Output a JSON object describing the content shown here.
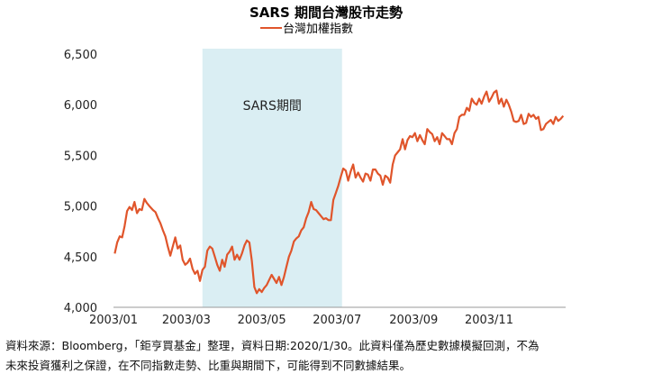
{
  "chart_data": {
    "type": "line",
    "title": "SARS 期間台灣股市走勢",
    "xlabel": "",
    "ylabel": "",
    "ylim": [
      4000,
      6500
    ],
    "yticks": [
      4000,
      4500,
      5000,
      5500,
      6000,
      6500
    ],
    "ytick_labels": [
      "4,000",
      "4,500",
      "5,000",
      "5,500",
      "6,000",
      "6,500"
    ],
    "xlim": [
      "2003-01-01",
      "2004-01-02"
    ],
    "xticks": [
      "2003-01-01",
      "2003-03-01",
      "2003-05-01",
      "2003-07-01",
      "2003-09-01",
      "2003-11-01"
    ],
    "xtick_labels": [
      "2003/01",
      "2003/03",
      "2003/05",
      "2003/07",
      "2003/09",
      "2003/11"
    ],
    "grid": false,
    "legend": "top-center",
    "shaded_region": {
      "start": "2003-03-14",
      "end": "2003-07-05",
      "label": "SARS期間",
      "color": "#daeef3"
    },
    "series": [
      {
        "name": "台灣加權指數",
        "color": "#e0552b",
        "points": [
          [
            "2003-01-02",
            4530
          ],
          [
            "2003-01-04",
            4640
          ],
          [
            "2003-01-06",
            4700
          ],
          [
            "2003-01-08",
            4690
          ],
          [
            "2003-01-10",
            4800
          ],
          [
            "2003-01-12",
            4950
          ],
          [
            "2003-01-14",
            4990
          ],
          [
            "2003-01-16",
            4960
          ],
          [
            "2003-01-18",
            5040
          ],
          [
            "2003-01-20",
            4930
          ],
          [
            "2003-01-22",
            4970
          ],
          [
            "2003-01-24",
            4960
          ],
          [
            "2003-01-26",
            5070
          ],
          [
            "2003-01-28",
            5030
          ],
          [
            "2003-01-30",
            5000
          ],
          [
            "2003-02-02",
            4960
          ],
          [
            "2003-02-04",
            4940
          ],
          [
            "2003-02-06",
            4880
          ],
          [
            "2003-02-08",
            4830
          ],
          [
            "2003-02-10",
            4760
          ],
          [
            "2003-02-12",
            4700
          ],
          [
            "2003-02-14",
            4600
          ],
          [
            "2003-02-16",
            4510
          ],
          [
            "2003-02-18",
            4600
          ],
          [
            "2003-02-20",
            4690
          ],
          [
            "2003-02-22",
            4580
          ],
          [
            "2003-02-24",
            4610
          ],
          [
            "2003-02-26",
            4470
          ],
          [
            "2003-02-28",
            4420
          ],
          [
            "2003-03-02",
            4440
          ],
          [
            "2003-03-04",
            4480
          ],
          [
            "2003-03-06",
            4380
          ],
          [
            "2003-03-08",
            4330
          ],
          [
            "2003-03-10",
            4360
          ],
          [
            "2003-03-12",
            4260
          ],
          [
            "2003-03-14",
            4370
          ],
          [
            "2003-03-16",
            4400
          ],
          [
            "2003-03-18",
            4560
          ],
          [
            "2003-03-20",
            4600
          ],
          [
            "2003-03-22",
            4580
          ],
          [
            "2003-03-24",
            4500
          ],
          [
            "2003-03-26",
            4420
          ],
          [
            "2003-03-28",
            4360
          ],
          [
            "2003-03-30",
            4470
          ],
          [
            "2003-04-01",
            4400
          ],
          [
            "2003-04-03",
            4520
          ],
          [
            "2003-04-05",
            4550
          ],
          [
            "2003-04-07",
            4600
          ],
          [
            "2003-04-09",
            4470
          ],
          [
            "2003-04-11",
            4520
          ],
          [
            "2003-04-13",
            4470
          ],
          [
            "2003-04-15",
            4530
          ],
          [
            "2003-04-17",
            4610
          ],
          [
            "2003-04-19",
            4660
          ],
          [
            "2003-04-21",
            4640
          ],
          [
            "2003-04-23",
            4460
          ],
          [
            "2003-04-25",
            4200
          ],
          [
            "2003-04-27",
            4140
          ],
          [
            "2003-04-29",
            4180
          ],
          [
            "2003-05-01",
            4150
          ],
          [
            "2003-05-03",
            4190
          ],
          [
            "2003-05-05",
            4220
          ],
          [
            "2003-05-07",
            4270
          ],
          [
            "2003-05-09",
            4320
          ],
          [
            "2003-05-11",
            4280
          ],
          [
            "2003-05-13",
            4240
          ],
          [
            "2003-05-15",
            4300
          ],
          [
            "2003-05-17",
            4220
          ],
          [
            "2003-05-19",
            4300
          ],
          [
            "2003-05-21",
            4400
          ],
          [
            "2003-05-23",
            4500
          ],
          [
            "2003-05-25",
            4560
          ],
          [
            "2003-05-27",
            4650
          ],
          [
            "2003-05-29",
            4680
          ],
          [
            "2003-05-31",
            4700
          ],
          [
            "2003-06-02",
            4760
          ],
          [
            "2003-06-04",
            4790
          ],
          [
            "2003-06-06",
            4880
          ],
          [
            "2003-06-08",
            4940
          ],
          [
            "2003-06-10",
            5040
          ],
          [
            "2003-06-12",
            4970
          ],
          [
            "2003-06-14",
            4960
          ],
          [
            "2003-06-16",
            4930
          ],
          [
            "2003-06-18",
            4900
          ],
          [
            "2003-06-20",
            4870
          ],
          [
            "2003-06-22",
            4880
          ],
          [
            "2003-06-24",
            4860
          ],
          [
            "2003-06-26",
            4860
          ],
          [
            "2003-06-28",
            5060
          ],
          [
            "2003-06-30",
            5130
          ],
          [
            "2003-07-02",
            5200
          ],
          [
            "2003-07-04",
            5290
          ],
          [
            "2003-07-06",
            5370
          ],
          [
            "2003-07-08",
            5350
          ],
          [
            "2003-07-10",
            5250
          ],
          [
            "2003-07-12",
            5340
          ],
          [
            "2003-07-14",
            5410
          ],
          [
            "2003-07-16",
            5280
          ],
          [
            "2003-07-18",
            5330
          ],
          [
            "2003-07-20",
            5280
          ],
          [
            "2003-07-22",
            5240
          ],
          [
            "2003-07-24",
            5320
          ],
          [
            "2003-07-26",
            5310
          ],
          [
            "2003-07-28",
            5250
          ],
          [
            "2003-07-30",
            5360
          ],
          [
            "2003-08-01",
            5360
          ],
          [
            "2003-08-03",
            5320
          ],
          [
            "2003-08-05",
            5300
          ],
          [
            "2003-08-07",
            5210
          ],
          [
            "2003-08-09",
            5300
          ],
          [
            "2003-08-11",
            5280
          ],
          [
            "2003-08-13",
            5230
          ],
          [
            "2003-08-15",
            5410
          ],
          [
            "2003-08-17",
            5500
          ],
          [
            "2003-08-19",
            5530
          ],
          [
            "2003-08-21",
            5560
          ],
          [
            "2003-08-23",
            5660
          ],
          [
            "2003-08-25",
            5560
          ],
          [
            "2003-08-27",
            5650
          ],
          [
            "2003-08-29",
            5690
          ],
          [
            "2003-08-31",
            5680
          ],
          [
            "2003-09-02",
            5720
          ],
          [
            "2003-09-04",
            5640
          ],
          [
            "2003-09-06",
            5700
          ],
          [
            "2003-09-08",
            5650
          ],
          [
            "2003-09-10",
            5610
          ],
          [
            "2003-09-12",
            5760
          ],
          [
            "2003-09-14",
            5730
          ],
          [
            "2003-09-16",
            5710
          ],
          [
            "2003-09-18",
            5640
          ],
          [
            "2003-09-20",
            5680
          ],
          [
            "2003-09-22",
            5610
          ],
          [
            "2003-09-24",
            5720
          ],
          [
            "2003-09-26",
            5690
          ],
          [
            "2003-09-28",
            5660
          ],
          [
            "2003-09-30",
            5660
          ],
          [
            "2003-10-02",
            5610
          ],
          [
            "2003-10-04",
            5720
          ],
          [
            "2003-10-06",
            5760
          ],
          [
            "2003-10-08",
            5880
          ],
          [
            "2003-10-10",
            5900
          ],
          [
            "2003-10-12",
            5900
          ],
          [
            "2003-10-14",
            5970
          ],
          [
            "2003-10-16",
            5940
          ],
          [
            "2003-10-18",
            6060
          ],
          [
            "2003-10-20",
            6020
          ],
          [
            "2003-10-22",
            6000
          ],
          [
            "2003-10-24",
            6060
          ],
          [
            "2003-10-26",
            6010
          ],
          [
            "2003-10-28",
            6080
          ],
          [
            "2003-10-30",
            6130
          ],
          [
            "2003-11-01",
            6030
          ],
          [
            "2003-11-03",
            6070
          ],
          [
            "2003-11-05",
            6120
          ],
          [
            "2003-11-07",
            6140
          ],
          [
            "2003-11-09",
            6010
          ],
          [
            "2003-11-11",
            6060
          ],
          [
            "2003-11-13",
            5980
          ],
          [
            "2003-11-15",
            6050
          ],
          [
            "2003-11-17",
            6000
          ],
          [
            "2003-11-19",
            5930
          ],
          [
            "2003-11-21",
            5840
          ],
          [
            "2003-11-23",
            5830
          ],
          [
            "2003-11-25",
            5840
          ],
          [
            "2003-11-27",
            5900
          ],
          [
            "2003-11-29",
            5810
          ],
          [
            "2003-12-01",
            5820
          ],
          [
            "2003-12-03",
            5910
          ],
          [
            "2003-12-05",
            5880
          ],
          [
            "2003-12-07",
            5900
          ],
          [
            "2003-12-09",
            5860
          ],
          [
            "2003-12-11",
            5880
          ],
          [
            "2003-12-13",
            5750
          ],
          [
            "2003-12-15",
            5760
          ],
          [
            "2003-12-17",
            5810
          ],
          [
            "2003-12-19",
            5830
          ],
          [
            "2003-12-21",
            5850
          ],
          [
            "2003-12-23",
            5810
          ],
          [
            "2003-12-25",
            5880
          ],
          [
            "2003-12-27",
            5840
          ],
          [
            "2003-12-29",
            5860
          ],
          [
            "2003-12-31",
            5890
          ]
        ]
      }
    ]
  },
  "footnote": [
    "資料來源：Bloomberg，「鉅亨買基金」整理，資料日期:2020/1/30。此資料僅為歷史數據模擬回測，不為",
    "未來投資獲利之保證，在不同指數走勢、比重與期間下，可能得到不同數據結果。"
  ]
}
